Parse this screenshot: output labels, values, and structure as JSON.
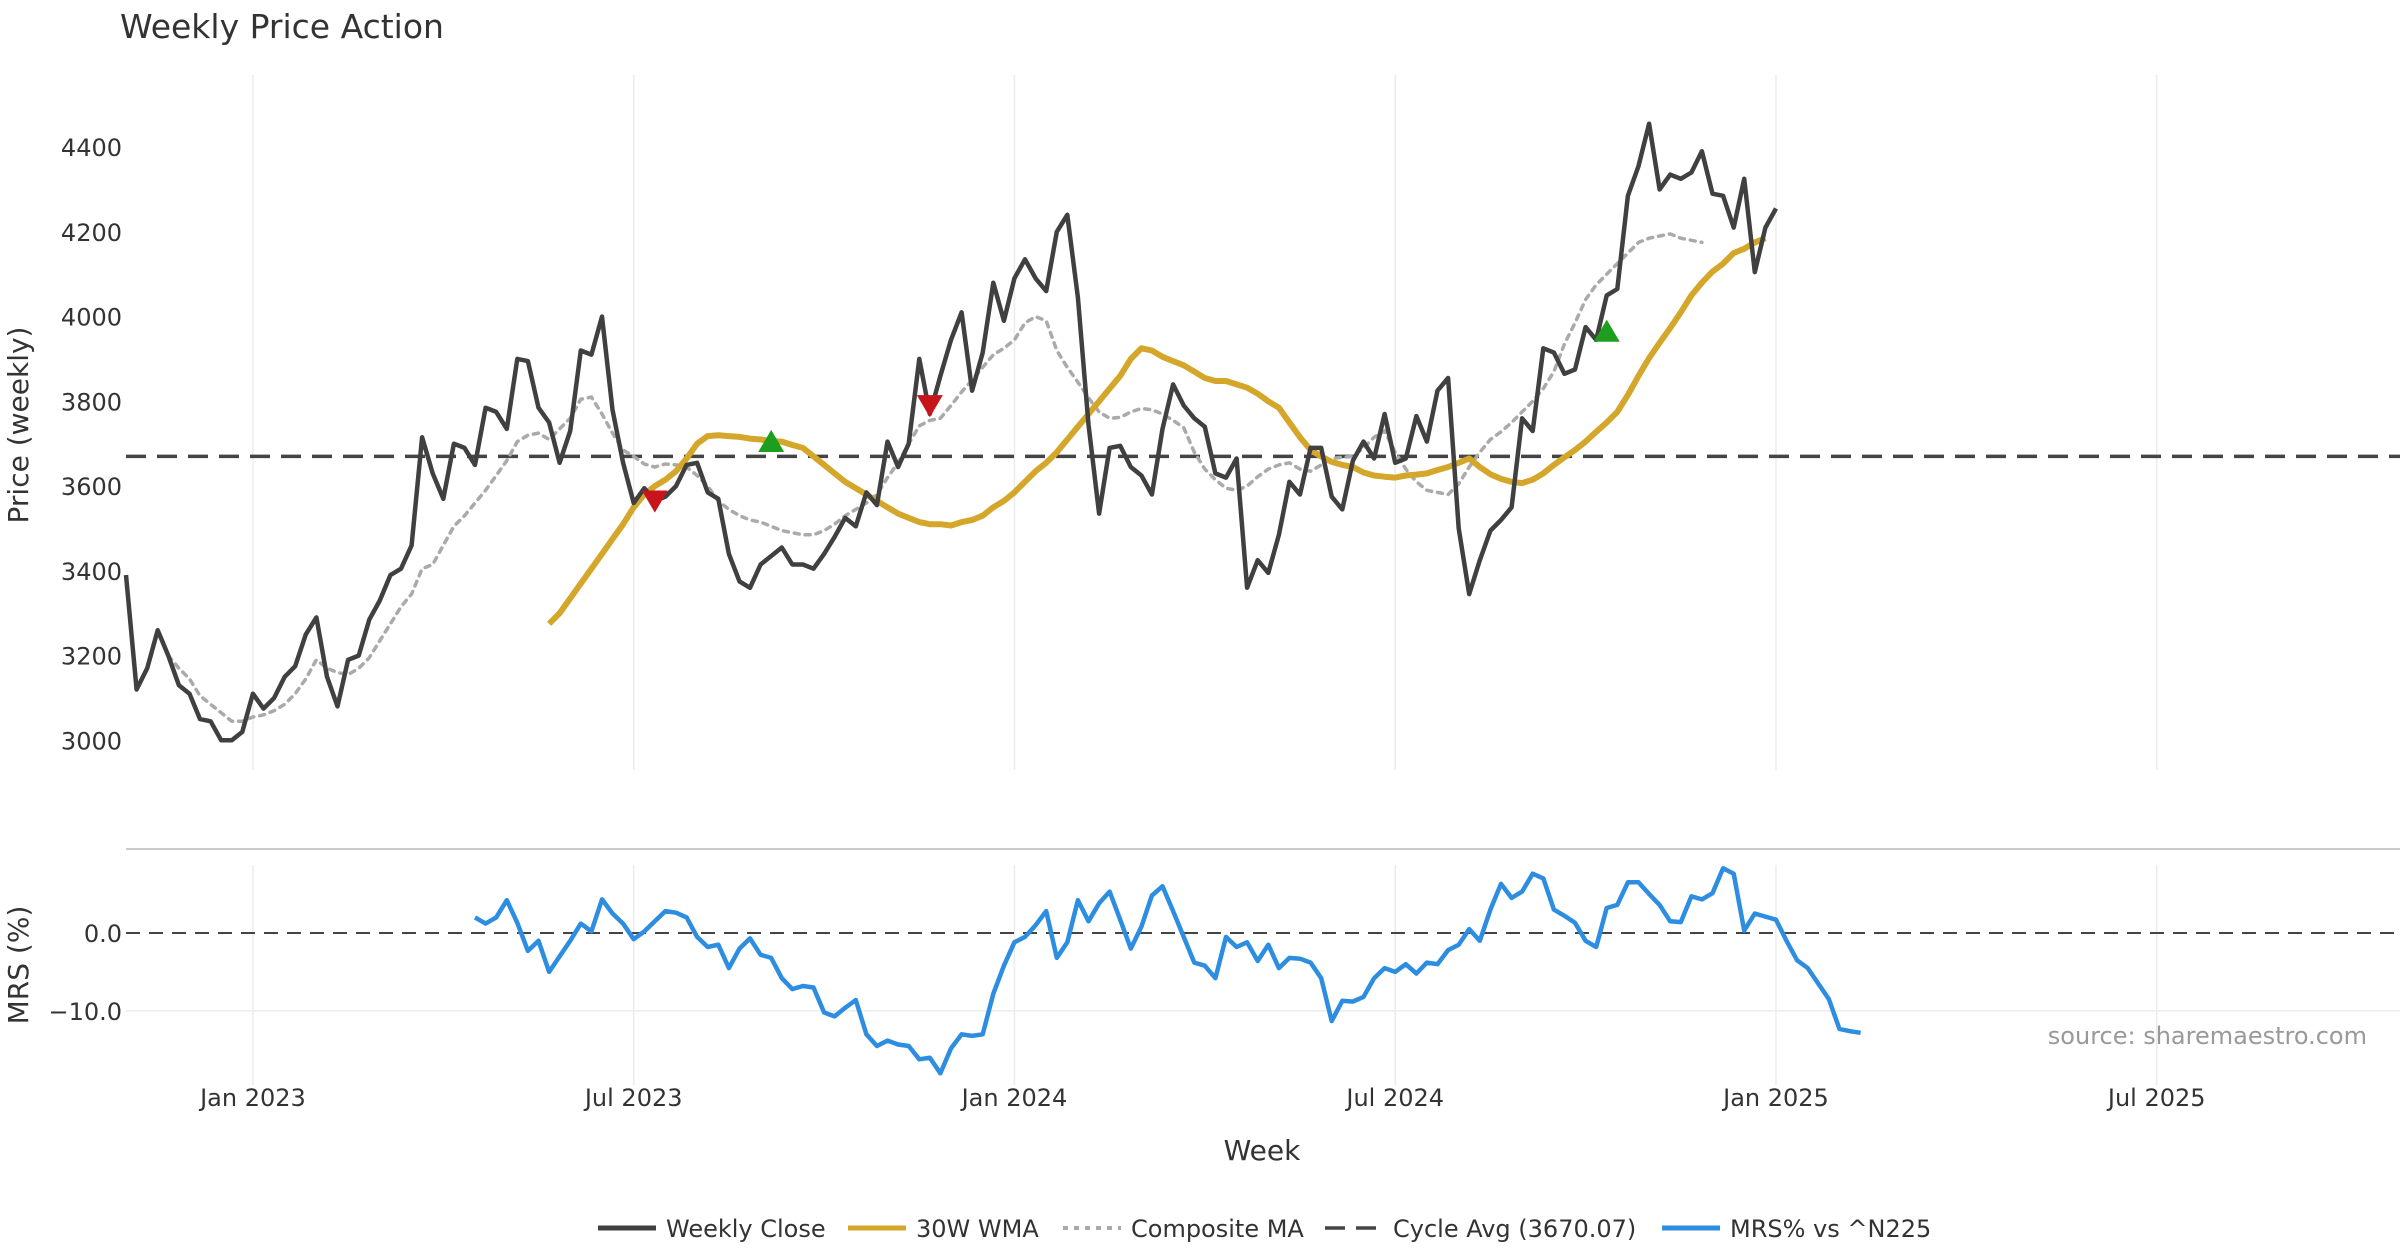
{
  "colors": {
    "close": "#404040",
    "wma": "#D4A62A",
    "composite": "#AAAAAA",
    "cycle": "#444444",
    "mrs": "#2D8DE0",
    "up_marker": "#1E9E1E",
    "down_marker": "#C8151B"
  },
  "chart_data": [
    {
      "type": "line",
      "title": "Weekly Price Action",
      "xlabel": "",
      "ylabel": "Price (weekly)",
      "x_ticks": [
        "Jan 2023",
        "Jul 2023",
        "Jan 2024",
        "Jul 2024",
        "Jan 2025",
        "Jul 2025"
      ],
      "x_tick_weeks": [
        12,
        48,
        84,
        120,
        156,
        192
      ],
      "x_range_weeks": [
        0,
        215
      ],
      "y_ticks": [
        3000,
        3200,
        3400,
        3600,
        3800,
        4000,
        4200,
        4400
      ],
      "ylim": [
        2930,
        4570
      ],
      "grid": "vertical",
      "cycle_avg": 3670.07,
      "wma_start_week": 40,
      "composite_start_week": 4,
      "series": [
        {
          "name": "Weekly Close",
          "values": [
            3390,
            3120,
            3170,
            3260,
            3200,
            3130,
            3110,
            3050,
            3045,
            3000,
            3000,
            3020,
            3110,
            3075,
            3100,
            3150,
            3175,
            3250,
            3290,
            3150,
            3080,
            3190,
            3200,
            3285,
            3330,
            3390,
            3405,
            3460,
            3715,
            3630,
            3570,
            3700,
            3690,
            3650,
            3785,
            3775,
            3735,
            3900,
            3895,
            3785,
            3750,
            3655,
            3730,
            3920,
            3910,
            4000,
            3780,
            3655,
            3560,
            3595,
            3565,
            3575,
            3600,
            3650,
            3655,
            3585,
            3570,
            3440,
            3375,
            3360,
            3415,
            3435,
            3455,
            3415,
            3415,
            3405,
            3440,
            3480,
            3525,
            3505,
            3585,
            3555,
            3705,
            3645,
            3700,
            3900,
            3770,
            3860,
            3945,
            4010,
            3825,
            3915,
            4080,
            3990,
            4090,
            4135,
            4090,
            4060,
            4200,
            4240,
            4045,
            3745,
            3535,
            3690,
            3695,
            3645,
            3625,
            3580,
            3735,
            3840,
            3790,
            3760,
            3740,
            3630,
            3620,
            3665,
            3360,
            3425,
            3395,
            3485,
            3610,
            3580,
            3690,
            3690,
            3575,
            3545,
            3660,
            3705,
            3665,
            3770,
            3655,
            3665,
            3765,
            3705,
            3825,
            3855,
            3500,
            3345,
            3425,
            3495,
            3520,
            3550,
            3760,
            3730,
            3925,
            3915,
            3865,
            3875,
            3975,
            3945,
            4050,
            4065,
            4285,
            4355,
            4455,
            4300,
            4335,
            4325,
            4340,
            4390,
            4290,
            4285,
            4210,
            4325,
            4105,
            4210,
            4255
          ]
        },
        {
          "name": "30W WMA",
          "values": [
            3275,
            3300,
            3335,
            3370,
            3405,
            3440,
            3475,
            3510,
            3550,
            3580,
            3600,
            3615,
            3635,
            3665,
            3700,
            3718,
            3720,
            3718,
            3716,
            3712,
            3710,
            3706,
            3705,
            3697,
            3690,
            3670,
            3650,
            3630,
            3610,
            3595,
            3580,
            3565,
            3550,
            3535,
            3525,
            3515,
            3510,
            3510,
            3507,
            3515,
            3520,
            3530,
            3550,
            3565,
            3585,
            3610,
            3635,
            3655,
            3680,
            3710,
            3740,
            3770,
            3800,
            3830,
            3860,
            3900,
            3925,
            3920,
            3905,
            3895,
            3885,
            3870,
            3855,
            3848,
            3848,
            3840,
            3832,
            3818,
            3800,
            3785,
            3750,
            3715,
            3685,
            3670,
            3657,
            3650,
            3645,
            3632,
            3625,
            3622,
            3620,
            3625,
            3627,
            3630,
            3638,
            3645,
            3655,
            3665,
            3645,
            3628,
            3617,
            3610,
            3607,
            3615,
            3630,
            3650,
            3668,
            3685,
            3705,
            3728,
            3750,
            3775,
            3815,
            3860,
            3902,
            3938,
            3973,
            4010,
            4050,
            4080,
            4106,
            4125,
            4150,
            4160,
            4175,
            4185
          ]
        },
        {
          "name": "Composite MA",
          "values": [
            3200,
            3170,
            3145,
            3105,
            3085,
            3065,
            3045,
            3045,
            3055,
            3060,
            3070,
            3085,
            3110,
            3145,
            3190,
            3170,
            3160,
            3155,
            3170,
            3195,
            3235,
            3275,
            3315,
            3345,
            3405,
            3415,
            3460,
            3505,
            3530,
            3560,
            3590,
            3625,
            3660,
            3705,
            3720,
            3725,
            3710,
            3735,
            3760,
            3805,
            3810,
            3770,
            3725,
            3685,
            3670,
            3652,
            3645,
            3652,
            3650,
            3645,
            3625,
            3600,
            3565,
            3545,
            3530,
            3520,
            3515,
            3505,
            3495,
            3490,
            3485,
            3485,
            3495,
            3510,
            3530,
            3545,
            3560,
            3580,
            3620,
            3655,
            3700,
            3742,
            3755,
            3760,
            3790,
            3822,
            3850,
            3880,
            3910,
            3925,
            3945,
            3985,
            4000,
            3990,
            3920,
            3880,
            3845,
            3808,
            3775,
            3760,
            3762,
            3775,
            3783,
            3780,
            3770,
            3755,
            3738,
            3680,
            3640,
            3615,
            3595,
            3590,
            3600,
            3622,
            3640,
            3650,
            3655,
            3640,
            3635,
            3650,
            3665,
            3668,
            3670,
            3690,
            3715,
            3730,
            3680,
            3640,
            3610,
            3590,
            3585,
            3580,
            3605,
            3645,
            3680,
            3710,
            3728,
            3750,
            3775,
            3800,
            3830,
            3870,
            3935,
            3985,
            4040,
            4075,
            4100,
            4125,
            4150,
            4175,
            4185,
            4190,
            4195,
            4185,
            4180,
            4175
          ]
        }
      ],
      "markers": [
        {
          "week": 50,
          "price": 3565,
          "type": "down"
        },
        {
          "week": 61,
          "price": 3705,
          "type": "up"
        },
        {
          "week": 76,
          "price": 3790,
          "type": "down"
        },
        {
          "week": 140,
          "price": 3965,
          "type": "up"
        }
      ],
      "legend": "bottom-center"
    },
    {
      "type": "line",
      "title": "",
      "xlabel": "Week",
      "ylabel": "MRS (%)",
      "x_ticks": [
        "Jan 2023",
        "Jul 2023",
        "Jan 2024",
        "Jul 2024",
        "Jan 2025",
        "Jul 2025"
      ],
      "y_ticks": [
        0.0,
        -10.0
      ],
      "y_tick_labels": [
        "0.0",
        "−10.0"
      ],
      "ylim": [
        -19.5,
        10.0
      ],
      "zero_line": 0,
      "start_week": 33,
      "series": [
        {
          "name": "MRS% vs ^N225",
          "values": [
            2.0,
            1.2,
            2.0,
            4.2,
            1.3,
            -2.3,
            -1.0,
            -5.0,
            -3.0,
            -1.0,
            1.2,
            0.2,
            4.3,
            2.5,
            1.2,
            -0.8,
            0.2,
            1.5,
            2.8,
            2.6,
            2.0,
            -0.5,
            -1.8,
            -1.5,
            -4.5,
            -2.0,
            -0.7,
            -2.8,
            -3.2,
            -5.8,
            -7.2,
            -6.8,
            -7.0,
            -10.2,
            -10.7,
            -9.6,
            -8.6,
            -13.0,
            -14.5,
            -13.8,
            -14.3,
            -14.5,
            -16.2,
            -16.0,
            -18.0,
            -14.8,
            -13.0,
            -13.2,
            -13.0,
            -7.8,
            -4.2,
            -1.2,
            -0.5,
            1.0,
            2.8,
            -3.2,
            -1.2,
            4.2,
            1.5,
            3.8,
            5.3,
            1.7,
            -2.0,
            0.8,
            4.8,
            6.0,
            2.8,
            -0.5,
            -3.8,
            -4.2,
            -5.8,
            -0.5,
            -1.8,
            -1.2,
            -3.6,
            -1.5,
            -4.5,
            -3.2,
            -3.3,
            -3.8,
            -5.8,
            -11.3,
            -8.7,
            -8.8,
            -8.2,
            -5.8,
            -4.5,
            -5.0,
            -4.0,
            -5.2,
            -3.8,
            -4.0,
            -2.2,
            -1.5,
            0.5,
            -1.0,
            3.0,
            6.3,
            4.5,
            5.3,
            7.6,
            7.0,
            3.0,
            2.2,
            1.3,
            -1.0,
            -1.8,
            3.2,
            3.6,
            6.5,
            6.5,
            5.0,
            3.6,
            1.5,
            1.4,
            4.7,
            4.3,
            5.1,
            8.3,
            7.6,
            0.3,
            2.5,
            2.1,
            1.7,
            -1.0,
            -3.5,
            -4.5,
            -6.5,
            -8.5,
            -12.3,
            -12.6,
            -12.8
          ]
        }
      ],
      "annotation": "source: sharemaestro.com"
    }
  ],
  "legend_items": [
    {
      "label": "Weekly Close",
      "style": "solid-dark"
    },
    {
      "label": "30W WMA",
      "style": "solid-gold"
    },
    {
      "label": "Composite MA",
      "style": "dotted-gray"
    },
    {
      "label": "Cycle Avg (3670.07)",
      "style": "dashed-dark"
    },
    {
      "label": "MRS% vs ^N225",
      "style": "solid-blue"
    }
  ]
}
